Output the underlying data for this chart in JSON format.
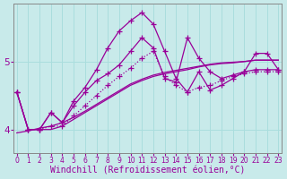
{
  "background_color": "#c8eaea",
  "line_color": "#990099",
  "markersize": 2.5,
  "linewidth": 0.9,
  "xlabel": "Windchill (Refroidissement éolien,°C)",
  "xlabel_fontsize": 7.0,
  "ytick_labels": [
    "4",
    "5"
  ],
  "ytick_positions": [
    4.0,
    5.0
  ],
  "xlim": [
    -0.3,
    23.3
  ],
  "ylim": [
    3.65,
    5.85
  ],
  "grid_color": "#aadddd",
  "grid_linewidth": 0.7,
  "xtick_labels": [
    "0",
    "1",
    "2",
    "3",
    "4",
    "5",
    "6",
    "7",
    "8",
    "9",
    "10",
    "11",
    "12",
    "13",
    "14",
    "15",
    "16",
    "17",
    "18",
    "19",
    "20",
    "21",
    "22",
    "23"
  ],
  "tick_fontsize": 5.5,
  "series": [
    {
      "y": [
        4.55,
        4.0,
        4.0,
        4.0,
        4.05,
        4.15,
        4.25,
        4.35,
        4.45,
        4.55,
        4.65,
        4.72,
        4.78,
        4.82,
        4.85,
        4.88,
        4.92,
        4.95,
        4.97,
        4.98,
        5.0,
        5.02,
        5.02,
        5.02
      ],
      "linestyle": "solid",
      "has_marker": false
    },
    {
      "y": [
        3.95,
        3.98,
        4.02,
        4.05,
        4.1,
        4.18,
        4.27,
        4.37,
        4.47,
        4.57,
        4.67,
        4.74,
        4.8,
        4.84,
        4.87,
        4.9,
        4.93,
        4.96,
        4.98,
        4.99,
        5.0,
        5.02,
        5.02,
        5.02
      ],
      "linestyle": "solid",
      "has_marker": false
    },
    {
      "y": [
        4.55,
        4.0,
        4.0,
        4.05,
        4.05,
        4.2,
        4.35,
        4.5,
        4.65,
        4.78,
        4.9,
        5.05,
        5.15,
        4.78,
        4.65,
        4.55,
        4.62,
        4.65,
        4.72,
        4.78,
        4.82,
        4.85,
        4.85,
        4.85
      ],
      "linestyle": "dotted",
      "has_marker": true
    },
    {
      "y": [
        4.55,
        4.0,
        4.0,
        4.25,
        4.1,
        4.42,
        4.62,
        4.88,
        5.2,
        5.45,
        5.6,
        5.72,
        5.55,
        5.15,
        4.75,
        4.55,
        4.85,
        4.58,
        4.65,
        4.75,
        4.85,
        5.12,
        5.12,
        4.88
      ],
      "linestyle": "solid",
      "has_marker": true
    },
    {
      "y": [
        4.55,
        4.0,
        4.0,
        4.25,
        4.1,
        4.35,
        4.55,
        4.72,
        4.82,
        4.95,
        5.15,
        5.35,
        5.2,
        4.75,
        4.7,
        5.35,
        5.05,
        4.85,
        4.75,
        4.8,
        4.85,
        4.88,
        4.88,
        4.88
      ],
      "linestyle": "solid",
      "has_marker": true
    }
  ]
}
